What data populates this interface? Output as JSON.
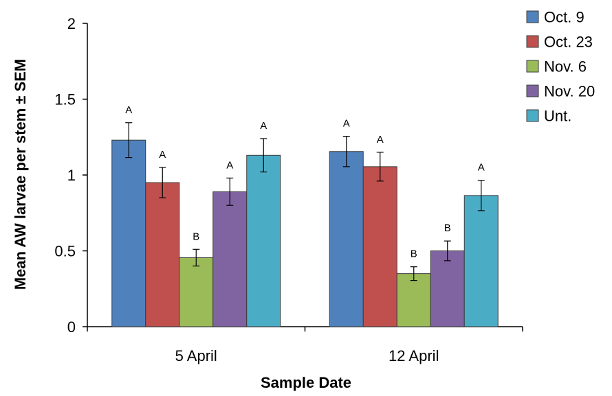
{
  "chart_data": {
    "type": "bar",
    "title": "",
    "xlabel": "Sample Date",
    "ylabel": "Mean AW larvae per stem ± SEM",
    "ylim": [
      0,
      2
    ],
    "yticks": [
      "0",
      "0.5",
      "1",
      "1.5",
      "2"
    ],
    "categories": [
      "5 April",
      "12 April"
    ],
    "legend_position": "right",
    "grid": false,
    "series": [
      {
        "name": "Oct. 9",
        "color": "#4f81bd",
        "values": [
          1.23,
          1.155
        ],
        "errors": [
          0.115,
          0.1
        ],
        "letters": [
          "A",
          "A"
        ]
      },
      {
        "name": "Oct. 23",
        "color": "#c0504d",
        "values": [
          0.95,
          1.055
        ],
        "errors": [
          0.1,
          0.095
        ],
        "letters": [
          "A",
          "A"
        ]
      },
      {
        "name": "Nov. 6",
        "color": "#9bbb59",
        "values": [
          0.455,
          0.35
        ],
        "errors": [
          0.055,
          0.045
        ],
        "letters": [
          "B",
          "B"
        ]
      },
      {
        "name": "Nov. 20",
        "color": "#8064a2",
        "values": [
          0.89,
          0.5
        ],
        "errors": [
          0.09,
          0.065
        ],
        "letters": [
          "A",
          "B"
        ]
      },
      {
        "name": "Unt.",
        "color": "#4bacc6",
        "values": [
          1.13,
          0.865
        ],
        "errors": [
          0.11,
          0.1
        ],
        "letters": [
          "A",
          "A"
        ]
      }
    ]
  }
}
